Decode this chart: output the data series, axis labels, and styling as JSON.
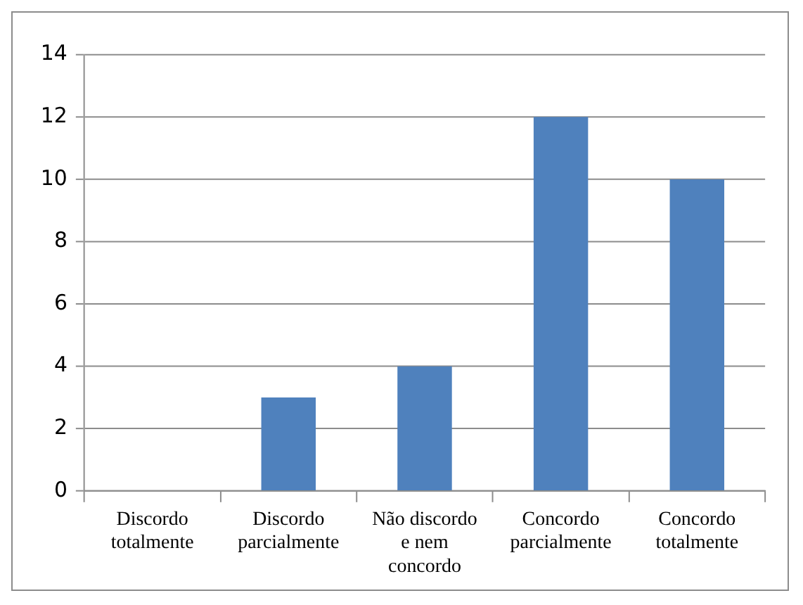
{
  "chart_data": {
    "type": "bar",
    "categories": [
      "Discordo totalmente",
      "Discordo parcialmente",
      "Não discordo e nem concordo",
      "Concordo parcialmente",
      "Concordo totalmente"
    ],
    "values": [
      0,
      3,
      4,
      12,
      10
    ],
    "color": "#4f81bd",
    "ylim": [
      0,
      14
    ],
    "yticks": [
      0,
      2,
      4,
      6,
      8,
      10,
      12,
      14
    ],
    "grid": "y",
    "legend": false
  }
}
